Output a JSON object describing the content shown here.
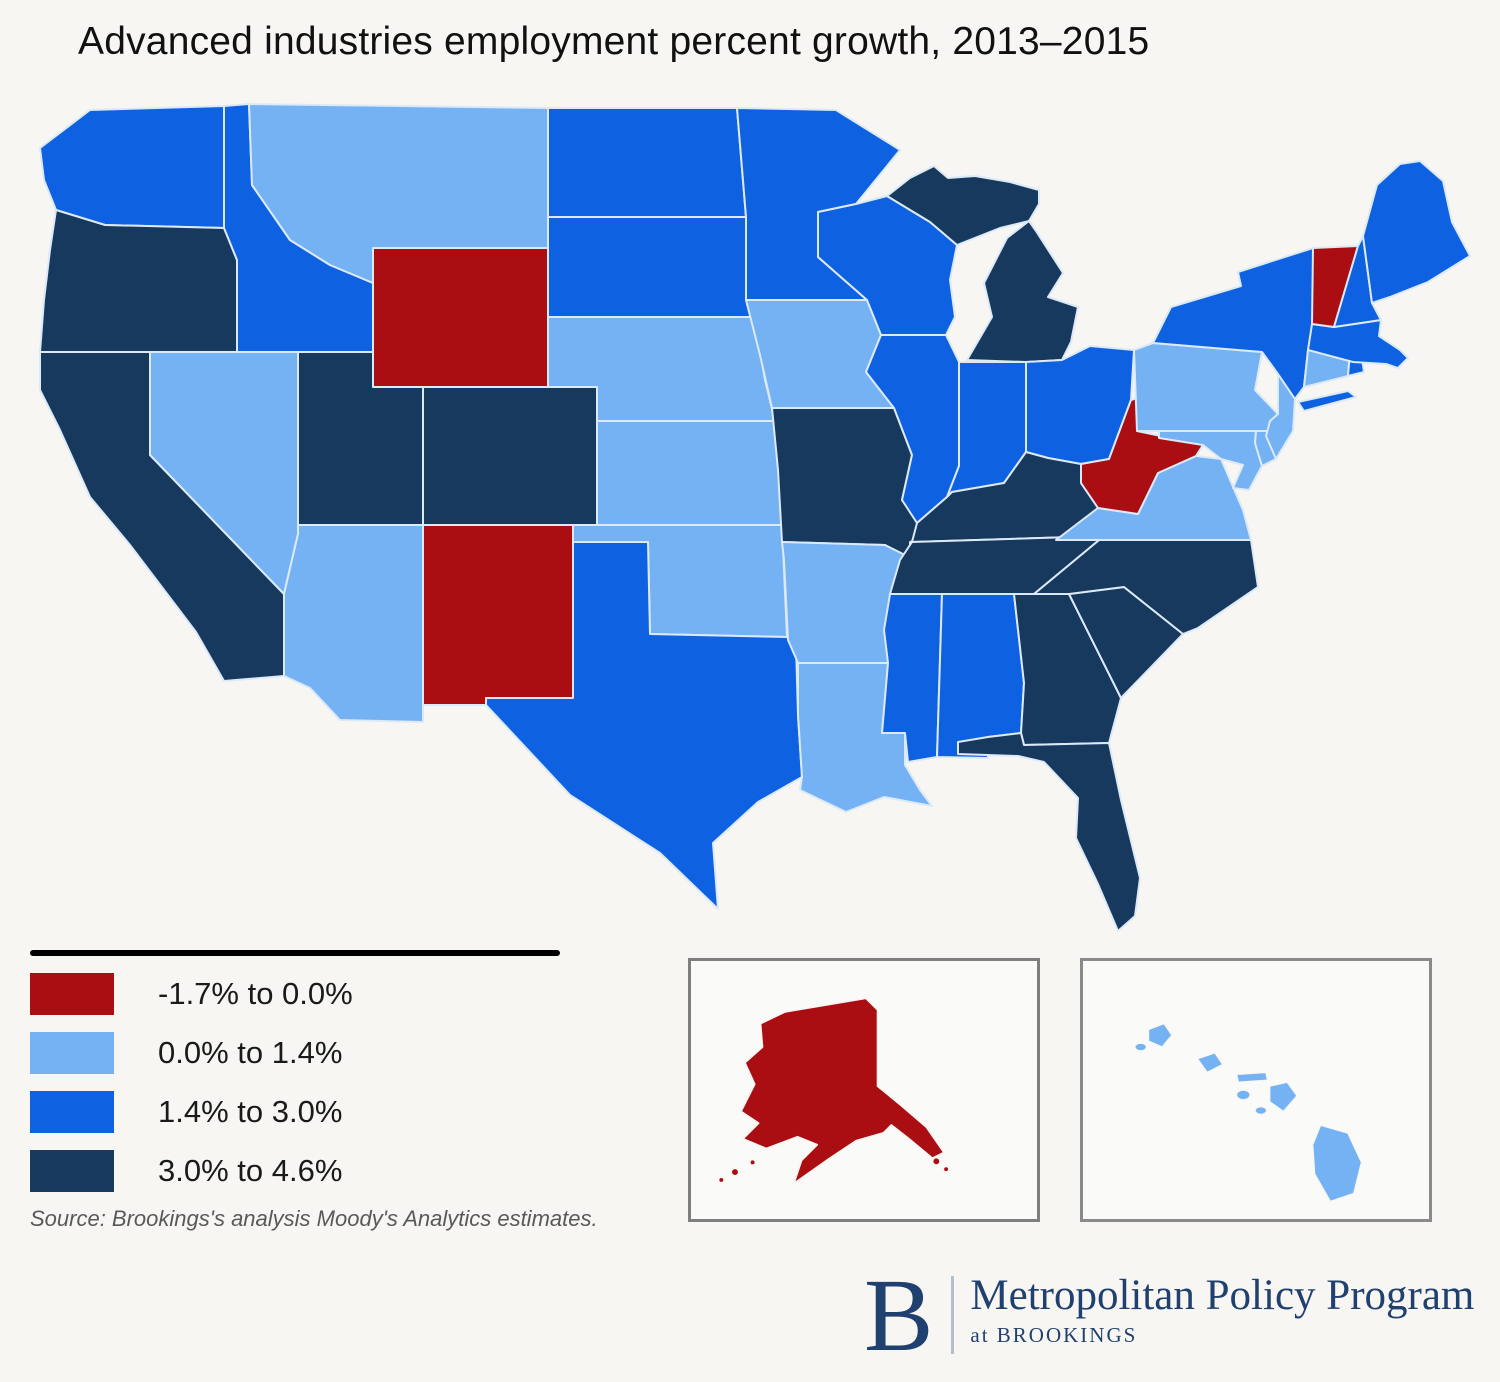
{
  "title": "Advanced industries employment percent growth, 2013–2015",
  "colors": {
    "background": "#F7F6F3",
    "buckets": [
      "#AB0E12",
      "#74B2F4",
      "#0E62E2",
      "#17395E"
    ],
    "state_border": "#DCE9F7",
    "inset_border": "#7F7F7F",
    "legend_rule": "#000000",
    "title_text": "#111111",
    "source_text": "#595959",
    "logo_navy": "#20416F"
  },
  "legend": {
    "items": [
      {
        "label": "-1.7% to 0.0%",
        "color": "#AB0E12"
      },
      {
        "label": "0.0% to 1.4%",
        "color": "#74B2F4"
      },
      {
        "label": "1.4% to 3.0%",
        "color": "#0E62E2"
      },
      {
        "label": "3.0% to 4.6%",
        "color": "#17395E"
      }
    ]
  },
  "source": "Source: Brookings's analysis Moody's Analytics estimates.",
  "logo": {
    "letter": "B",
    "program": "Metropolitan Policy Program",
    "sub": "at BROOKINGS"
  },
  "map": {
    "states": [
      {
        "abbr": "WA",
        "name": "Washington",
        "category": 2,
        "range": "1.4% to 3.0%"
      },
      {
        "abbr": "OR",
        "name": "Oregon",
        "category": 3,
        "range": "3.0% to 4.6%"
      },
      {
        "abbr": "CA",
        "name": "California",
        "category": 3,
        "range": "3.0% to 4.6%"
      },
      {
        "abbr": "NV",
        "name": "Nevada",
        "category": 1,
        "range": "0.0% to 1.4%"
      },
      {
        "abbr": "ID",
        "name": "Idaho",
        "category": 2,
        "range": "1.4% to 3.0%"
      },
      {
        "abbr": "MT",
        "name": "Montana",
        "category": 1,
        "range": "0.0% to 1.4%"
      },
      {
        "abbr": "WY",
        "name": "Wyoming",
        "category": 0,
        "range": "-1.7% to 0.0%"
      },
      {
        "abbr": "UT",
        "name": "Utah",
        "category": 3,
        "range": "3.0% to 4.6%"
      },
      {
        "abbr": "CO",
        "name": "Colorado",
        "category": 3,
        "range": "3.0% to 4.6%"
      },
      {
        "abbr": "AZ",
        "name": "Arizona",
        "category": 1,
        "range": "0.0% to 1.4%"
      },
      {
        "abbr": "NM",
        "name": "New Mexico",
        "category": 0,
        "range": "-1.7% to 0.0%"
      },
      {
        "abbr": "ND",
        "name": "North Dakota",
        "category": 2,
        "range": "1.4% to 3.0%"
      },
      {
        "abbr": "SD",
        "name": "South Dakota",
        "category": 2,
        "range": "1.4% to 3.0%"
      },
      {
        "abbr": "NE",
        "name": "Nebraska",
        "category": 1,
        "range": "0.0% to 1.4%"
      },
      {
        "abbr": "KS",
        "name": "Kansas",
        "category": 1,
        "range": "0.0% to 1.4%"
      },
      {
        "abbr": "OK",
        "name": "Oklahoma",
        "category": 1,
        "range": "0.0% to 1.4%"
      },
      {
        "abbr": "TX",
        "name": "Texas",
        "category": 2,
        "range": "1.4% to 3.0%"
      },
      {
        "abbr": "MN",
        "name": "Minnesota",
        "category": 2,
        "range": "1.4% to 3.0%"
      },
      {
        "abbr": "IA",
        "name": "Iowa",
        "category": 1,
        "range": "0.0% to 1.4%"
      },
      {
        "abbr": "MO",
        "name": "Missouri",
        "category": 3,
        "range": "3.0% to 4.6%"
      },
      {
        "abbr": "AR",
        "name": "Arkansas",
        "category": 1,
        "range": "0.0% to 1.4%"
      },
      {
        "abbr": "LA",
        "name": "Louisiana",
        "category": 1,
        "range": "0.0% to 1.4%"
      },
      {
        "abbr": "WI",
        "name": "Wisconsin",
        "category": 2,
        "range": "1.4% to 3.0%"
      },
      {
        "abbr": "IL",
        "name": "Illinois",
        "category": 2,
        "range": "1.4% to 3.0%"
      },
      {
        "abbr": "MI",
        "name": "Michigan",
        "category": 3,
        "range": "3.0% to 4.6%"
      },
      {
        "abbr": "IN",
        "name": "Indiana",
        "category": 2,
        "range": "1.4% to 3.0%"
      },
      {
        "abbr": "OH",
        "name": "Ohio",
        "category": 2,
        "range": "1.4% to 3.0%"
      },
      {
        "abbr": "KY",
        "name": "Kentucky",
        "category": 3,
        "range": "3.0% to 4.6%"
      },
      {
        "abbr": "TN",
        "name": "Tennessee",
        "category": 3,
        "range": "3.0% to 4.6%"
      },
      {
        "abbr": "MS",
        "name": "Mississippi",
        "category": 2,
        "range": "1.4% to 3.0%"
      },
      {
        "abbr": "AL",
        "name": "Alabama",
        "category": 2,
        "range": "1.4% to 3.0%"
      },
      {
        "abbr": "GA",
        "name": "Georgia",
        "category": 3,
        "range": "3.0% to 4.6%"
      },
      {
        "abbr": "FL",
        "name": "Florida",
        "category": 3,
        "range": "3.0% to 4.6%"
      },
      {
        "abbr": "SC",
        "name": "South Carolina",
        "category": 3,
        "range": "3.0% to 4.6%"
      },
      {
        "abbr": "NC",
        "name": "North Carolina",
        "category": 3,
        "range": "3.0% to 4.6%"
      },
      {
        "abbr": "VA",
        "name": "Virginia",
        "category": 1,
        "range": "0.0% to 1.4%"
      },
      {
        "abbr": "WV",
        "name": "West Virginia",
        "category": 0,
        "range": "-1.7% to 0.0%"
      },
      {
        "abbr": "MD",
        "name": "Maryland",
        "category": 1,
        "range": "0.0% to 1.4%"
      },
      {
        "abbr": "DE",
        "name": "Delaware",
        "category": 1,
        "range": "0.0% to 1.4%"
      },
      {
        "abbr": "PA",
        "name": "Pennsylvania",
        "category": 1,
        "range": "0.0% to 1.4%"
      },
      {
        "abbr": "NJ",
        "name": "New Jersey",
        "category": 1,
        "range": "0.0% to 1.4%"
      },
      {
        "abbr": "NY",
        "name": "New York",
        "category": 2,
        "range": "1.4% to 3.0%"
      },
      {
        "abbr": "CT",
        "name": "Connecticut",
        "category": 1,
        "range": "0.0% to 1.4%"
      },
      {
        "abbr": "RI",
        "name": "Rhode Island",
        "category": 2,
        "range": "1.4% to 3.0%"
      },
      {
        "abbr": "MA",
        "name": "Massachusetts",
        "category": 2,
        "range": "1.4% to 3.0%"
      },
      {
        "abbr": "VT",
        "name": "Vermont",
        "category": 0,
        "range": "-1.7% to 0.0%"
      },
      {
        "abbr": "NH",
        "name": "New Hampshire",
        "category": 2,
        "range": "1.4% to 3.0%"
      },
      {
        "abbr": "ME",
        "name": "Maine",
        "category": 2,
        "range": "1.4% to 3.0%"
      },
      {
        "abbr": "AK",
        "name": "Alaska",
        "category": 0,
        "range": "-1.7% to 0.0%"
      },
      {
        "abbr": "HI",
        "name": "Hawaii",
        "category": 1,
        "range": "0.0% to 1.4%"
      }
    ]
  }
}
